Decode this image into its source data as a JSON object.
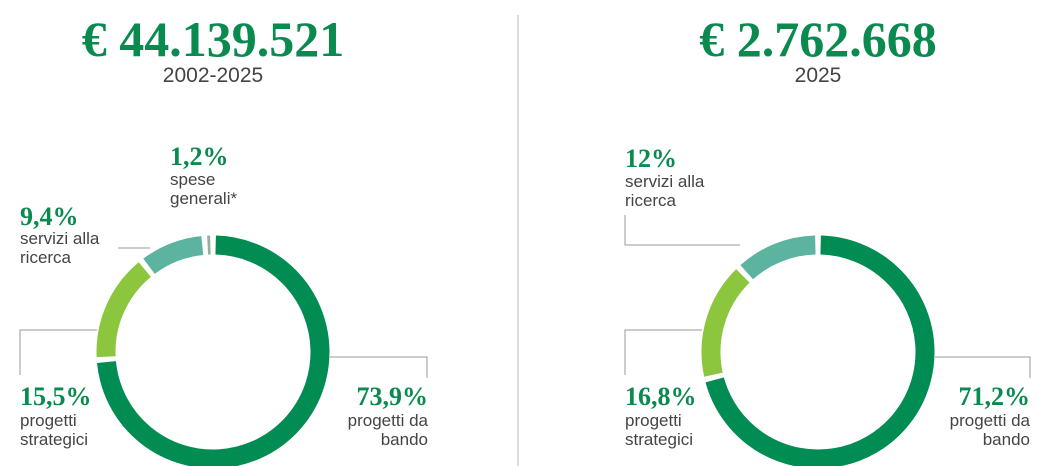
{
  "chart_data": [
    {
      "type": "donut",
      "title": "€ 44.139.521",
      "subtitle": "2002-2025",
      "categories": [
        "progetti da bando",
        "progetti strategici",
        "servizi alla ricerca",
        "spese generali*"
      ],
      "values": [
        73.9,
        15.5,
        9.4,
        1.2
      ],
      "value_labels": [
        "73,9%",
        "15,5%",
        "9,4%",
        "1,2%"
      ],
      "colors": [
        "#008c52",
        "#8cc63f",
        "#5cb3a0",
        "#94ae9c"
      ]
    },
    {
      "type": "donut",
      "title": "€ 2.762.668",
      "subtitle": "2025",
      "categories": [
        "progetti da bando",
        "progetti strategici",
        "servizi alla ricerca"
      ],
      "values": [
        71.2,
        16.8,
        12
      ],
      "value_labels": [
        "71,2%",
        "16,8%",
        "12%"
      ],
      "colors": [
        "#008c52",
        "#8cc63f",
        "#5cb3a0"
      ]
    }
  ]
}
